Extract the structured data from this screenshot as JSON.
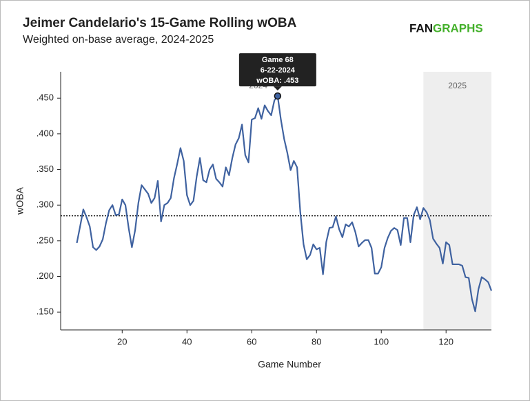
{
  "chart_data": {
    "type": "line",
    "title": "Jeimer Candelario's 15-Game Rolling wOBA",
    "subtitle": "Weighted on-base average, 2024-2025",
    "logo": [
      "FAN",
      "GRAPHS"
    ],
    "xlabel": "Game Number",
    "ylabel": "wOBA",
    "x": [
      6,
      7,
      8,
      9,
      10,
      11,
      12,
      13,
      14,
      15,
      16,
      17,
      18,
      19,
      20,
      21,
      22,
      23,
      24,
      25,
      26,
      27,
      28,
      29,
      30,
      31,
      32,
      33,
      34,
      35,
      36,
      37,
      38,
      39,
      40,
      41,
      42,
      43,
      44,
      45,
      46,
      47,
      48,
      49,
      50,
      51,
      52,
      53,
      54,
      55,
      56,
      57,
      58,
      59,
      60,
      61,
      62,
      63,
      64,
      65,
      66,
      67,
      68,
      69,
      70,
      71,
      72,
      73,
      74,
      75,
      76,
      77,
      78,
      79,
      80,
      81,
      82,
      83,
      84,
      85,
      86,
      87,
      88,
      89,
      90,
      91,
      92,
      93,
      94,
      95,
      96,
      97,
      98,
      99,
      100,
      101,
      102,
      103,
      104,
      105,
      106,
      107,
      108,
      109,
      110,
      111,
      112,
      113,
      114,
      115,
      116,
      117,
      118,
      119,
      120,
      121,
      122,
      123,
      124,
      125,
      126,
      127,
      128,
      129,
      130,
      131,
      132,
      133,
      134
    ],
    "series": [
      {
        "name": "wOBA",
        "color": "#3f62a0",
        "values": [
          0.247,
          0.27,
          0.294,
          0.283,
          0.27,
          0.241,
          0.237,
          0.242,
          0.252,
          0.275,
          0.293,
          0.3,
          0.286,
          0.287,
          0.308,
          0.3,
          0.268,
          0.241,
          0.265,
          0.303,
          0.328,
          0.322,
          0.316,
          0.303,
          0.31,
          0.334,
          0.277,
          0.3,
          0.303,
          0.31,
          0.338,
          0.358,
          0.38,
          0.362,
          0.314,
          0.3,
          0.306,
          0.34,
          0.366,
          0.335,
          0.332,
          0.35,
          0.357,
          0.337,
          0.332,
          0.326,
          0.353,
          0.342,
          0.366,
          0.385,
          0.394,
          0.413,
          0.37,
          0.36,
          0.42,
          0.422,
          0.436,
          0.421,
          0.44,
          0.432,
          0.426,
          0.447,
          0.453,
          0.42,
          0.393,
          0.373,
          0.349,
          0.362,
          0.353,
          0.29,
          0.245,
          0.224,
          0.23,
          0.245,
          0.238,
          0.24,
          0.203,
          0.248,
          0.268,
          0.269,
          0.284,
          0.266,
          0.255,
          0.273,
          0.27,
          0.276,
          0.262,
          0.242,
          0.247,
          0.251,
          0.251,
          0.24,
          0.204,
          0.204,
          0.213,
          0.24,
          0.254,
          0.264,
          0.268,
          0.265,
          0.244,
          0.282,
          0.282,
          0.248,
          0.286,
          0.297,
          0.28,
          0.296,
          0.29,
          0.279,
          0.253,
          0.246,
          0.24,
          0.218,
          0.248,
          0.244,
          0.217,
          0.217,
          0.217,
          0.215,
          0.199,
          0.198,
          0.168,
          0.151,
          0.182,
          0.199,
          0.196,
          0.192,
          0.18
        ]
      }
    ],
    "xlim": [
      1,
      134
    ],
    "ylim": [
      0.125,
      0.487
    ],
    "xticks": [
      20,
      40,
      60,
      80,
      100,
      120
    ],
    "yticks": [
      {
        "value": 0.15,
        "label": ".150"
      },
      {
        "value": 0.2,
        "label": ".200"
      },
      {
        "value": 0.25,
        "label": ".250"
      },
      {
        "value": 0.3,
        "label": ".300"
      },
      {
        "value": 0.35,
        "label": ".350"
      },
      {
        "value": 0.4,
        "label": ".400"
      },
      {
        "value": 0.45,
        "label": ".450"
      }
    ],
    "reference_line": 0.285,
    "regions": [
      {
        "label": "2024",
        "start": 1,
        "end": 113,
        "shaded": false
      },
      {
        "label": "2025",
        "start": 113,
        "end": 134,
        "shaded": true
      }
    ],
    "tooltip": {
      "x": 68,
      "lines": [
        "Game 68",
        "6-22-2024",
        "wOBA: .453"
      ]
    }
  }
}
